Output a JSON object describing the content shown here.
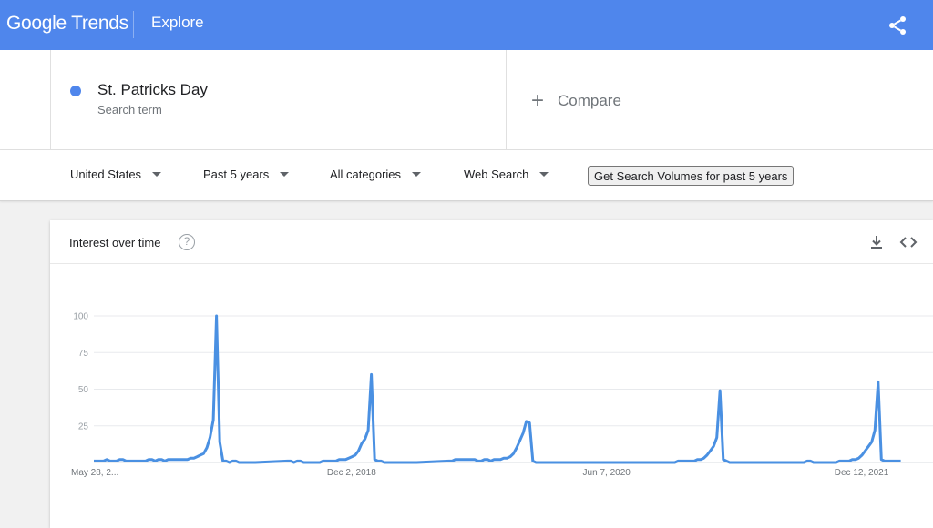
{
  "header": {
    "logo": "Google Trends",
    "section": "Explore",
    "share_icon": "share-icon"
  },
  "search_term": {
    "name": "St. Patricks Day",
    "subtitle": "Search term",
    "color": "#4f86ec"
  },
  "compare": {
    "label": "Compare"
  },
  "filters": {
    "region": "United States",
    "period": "Past 5 years",
    "category": "All categories",
    "search_type": "Web Search",
    "volumes_button": "Get Search Volumes for past 5 years"
  },
  "card": {
    "title": "Interest over time",
    "help_glyph": "?",
    "download_icon": "download-icon",
    "embed_icon": "embed-code-icon"
  },
  "chart_data": {
    "type": "line",
    "title": "Interest over time",
    "xlabel": "",
    "ylabel": "",
    "ylim": [
      0,
      100
    ],
    "yticks": [
      {
        "value": 25,
        "label": "25"
      },
      {
        "value": 50,
        "label": "50"
      },
      {
        "value": 75,
        "label": "75"
      },
      {
        "value": 100,
        "label": "100"
      }
    ],
    "xticks": [
      {
        "week": 0,
        "label": "May 28, 2..."
      },
      {
        "week": 79,
        "label": "Dec 2, 2018"
      },
      {
        "week": 158,
        "label": "Jun 7, 2020"
      },
      {
        "week": 237,
        "label": "Dec 12, 2021"
      }
    ],
    "x_range": [
      0,
      260
    ],
    "grid": true,
    "line_color": "#4a90e2",
    "series": [
      {
        "name": "St. Patricks Day",
        "points": [
          [
            0,
            1
          ],
          [
            3,
            1
          ],
          [
            4,
            2
          ],
          [
            5,
            1
          ],
          [
            7,
            1
          ],
          [
            8,
            2
          ],
          [
            9,
            2
          ],
          [
            10,
            1
          ],
          [
            16,
            1
          ],
          [
            17,
            2
          ],
          [
            18,
            2
          ],
          [
            19,
            1
          ],
          [
            20,
            2
          ],
          [
            21,
            2
          ],
          [
            22,
            1
          ],
          [
            23,
            2
          ],
          [
            24,
            2
          ],
          [
            25,
            2
          ],
          [
            26,
            2
          ],
          [
            27,
            2
          ],
          [
            28,
            2
          ],
          [
            29,
            2
          ],
          [
            30,
            3
          ],
          [
            31,
            3
          ],
          [
            32,
            4
          ],
          [
            33,
            5
          ],
          [
            34,
            6
          ],
          [
            35,
            10
          ],
          [
            36,
            17
          ],
          [
            37,
            29
          ],
          [
            38,
            100
          ],
          [
            39,
            14
          ],
          [
            40,
            1
          ],
          [
            41,
            1
          ],
          [
            42,
            0
          ],
          [
            43,
            1
          ],
          [
            44,
            1
          ],
          [
            45,
            0
          ],
          [
            50,
            0
          ],
          [
            60,
            1
          ],
          [
            61,
            1
          ],
          [
            62,
            0
          ],
          [
            63,
            1
          ],
          [
            64,
            1
          ],
          [
            65,
            0
          ],
          [
            70,
            0
          ],
          [
            71,
            1
          ],
          [
            72,
            1
          ],
          [
            73,
            1
          ],
          [
            74,
            1
          ],
          [
            75,
            1
          ],
          [
            76,
            2
          ],
          [
            77,
            2
          ],
          [
            78,
            2
          ],
          [
            79,
            3
          ],
          [
            80,
            4
          ],
          [
            81,
            5
          ],
          [
            82,
            8
          ],
          [
            83,
            13
          ],
          [
            84,
            16
          ],
          [
            85,
            22
          ],
          [
            86,
            60
          ],
          [
            87,
            2
          ],
          [
            88,
            1
          ],
          [
            89,
            1
          ],
          [
            90,
            0
          ],
          [
            100,
            0
          ],
          [
            110,
            1
          ],
          [
            111,
            1
          ],
          [
            112,
            2
          ],
          [
            113,
            2
          ],
          [
            114,
            2
          ],
          [
            115,
            2
          ],
          [
            116,
            2
          ],
          [
            117,
            2
          ],
          [
            118,
            2
          ],
          [
            119,
            1
          ],
          [
            120,
            1
          ],
          [
            121,
            2
          ],
          [
            122,
            2
          ],
          [
            123,
            1
          ],
          [
            124,
            2
          ],
          [
            125,
            2
          ],
          [
            126,
            2
          ],
          [
            127,
            3
          ],
          [
            128,
            3
          ],
          [
            129,
            4
          ],
          [
            130,
            6
          ],
          [
            131,
            10
          ],
          [
            132,
            15
          ],
          [
            133,
            20
          ],
          [
            134,
            28
          ],
          [
            135,
            27
          ],
          [
            136,
            1
          ],
          [
            137,
            0
          ],
          [
            150,
            0
          ],
          [
            160,
            0
          ],
          [
            170,
            0
          ],
          [
            180,
            0
          ],
          [
            181,
            1
          ],
          [
            182,
            1
          ],
          [
            183,
            1
          ],
          [
            184,
            1
          ],
          [
            185,
            1
          ],
          [
            186,
            1
          ],
          [
            187,
            2
          ],
          [
            188,
            2
          ],
          [
            189,
            3
          ],
          [
            190,
            5
          ],
          [
            191,
            8
          ],
          [
            192,
            11
          ],
          [
            193,
            17
          ],
          [
            194,
            49
          ],
          [
            195,
            2
          ],
          [
            196,
            1
          ],
          [
            197,
            0
          ],
          [
            210,
            0
          ],
          [
            220,
            0
          ],
          [
            221,
            1
          ],
          [
            222,
            1
          ],
          [
            223,
            0
          ],
          [
            230,
            0
          ],
          [
            231,
            1
          ],
          [
            232,
            1
          ],
          [
            233,
            1
          ],
          [
            234,
            1
          ],
          [
            235,
            2
          ],
          [
            236,
            2
          ],
          [
            237,
            3
          ],
          [
            238,
            5
          ],
          [
            239,
            8
          ],
          [
            240,
            11
          ],
          [
            241,
            14
          ],
          [
            242,
            22
          ],
          [
            243,
            55
          ],
          [
            244,
            2
          ],
          [
            245,
            1
          ],
          [
            246,
            1
          ],
          [
            247,
            1
          ],
          [
            248,
            1
          ],
          [
            249,
            1
          ],
          [
            250,
            1
          ]
        ]
      }
    ]
  }
}
